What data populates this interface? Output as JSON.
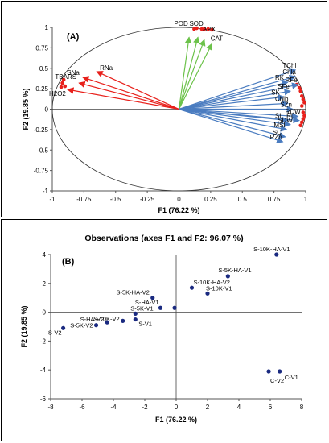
{
  "chart_data": [
    {
      "type": "biplot",
      "panel_label": "(A)",
      "xlabel": "F1 (76.22 %)",
      "ylabel": "F2 (19.85 %)",
      "xlim": [
        -1,
        1
      ],
      "ylim": [
        -1,
        1
      ],
      "x_ticks": [
        "-1",
        "-0.75",
        "-0.5",
        "-0.25",
        "0",
        "0.25",
        "0.5",
        "0.75",
        "1"
      ],
      "y_ticks": [
        "-1",
        "-0.75",
        "-0.5",
        "-0.25",
        "0",
        "0.25",
        "0.5",
        "0.75",
        "1"
      ],
      "color_groups": {
        "red": "#e8201b",
        "green": "#6cc24a",
        "blue": "#4a7cc0"
      },
      "vectors": [
        {
          "label": "RNa",
          "x": -0.65,
          "y": 0.46,
          "group": "red"
        },
        {
          "label": "SNa",
          "x": -0.76,
          "y": 0.39,
          "group": "red"
        },
        {
          "label": "TBARS",
          "x": -0.79,
          "y": 0.32,
          "group": "red"
        },
        {
          "label": "H2O2",
          "x": -0.88,
          "y": 0.24,
          "group": "red"
        },
        {
          "label": "POD",
          "x": 0.08,
          "y": 0.88,
          "group": "green"
        },
        {
          "label": "SOD",
          "x": 0.15,
          "y": 0.88,
          "group": "green"
        },
        {
          "label": "APX",
          "x": 0.2,
          "y": 0.85,
          "group": "green"
        },
        {
          "label": "CAT",
          "x": 0.26,
          "y": 0.8,
          "group": "green"
        },
        {
          "label": "TChl",
          "x": 0.92,
          "y": 0.48,
          "group": "blue"
        },
        {
          "label": "Chla",
          "x": 0.92,
          "y": 0.4,
          "group": "blue"
        },
        {
          "label": "RK",
          "x": 0.86,
          "y": 0.33,
          "group": "blue"
        },
        {
          "label": "RFe",
          "x": 0.94,
          "y": 0.3,
          "group": "blue"
        },
        {
          "label": "SFe",
          "x": 0.88,
          "y": 0.22,
          "group": "blue"
        },
        {
          "label": "SK",
          "x": 0.83,
          "y": 0.15,
          "group": "blue"
        },
        {
          "label": "Chlb",
          "x": 0.86,
          "y": 0.07,
          "group": "blue"
        },
        {
          "label": "SZn",
          "x": 0.9,
          "y": 0.0,
          "group": "blue"
        },
        {
          "label": "RDW",
          "x": 0.94,
          "y": -0.09,
          "group": "blue"
        },
        {
          "label": "RL",
          "x": 0.95,
          "y": -0.14,
          "group": "blue"
        },
        {
          "label": "SL",
          "x": 0.86,
          "y": -0.14,
          "group": "blue"
        },
        {
          "label": "SDW",
          "x": 0.88,
          "y": -0.19,
          "group": "blue"
        },
        {
          "label": "MSI",
          "x": 0.85,
          "y": -0.25,
          "group": "blue"
        },
        {
          "label": "SC",
          "x": 0.84,
          "y": -0.34,
          "group": "blue"
        },
        {
          "label": "RZn",
          "x": 0.82,
          "y": -0.4,
          "group": "blue"
        }
      ],
      "red_dots": [
        {
          "x": -0.93,
          "y": 0.27
        },
        {
          "x": -0.92,
          "y": 0.32
        },
        {
          "x": -0.91,
          "y": 0.36
        },
        {
          "x": -0.9,
          "y": 0.28
        },
        {
          "x": 0.12,
          "y": 0.98
        },
        {
          "x": 0.14,
          "y": 0.99
        },
        {
          "x": 0.18,
          "y": 0.98
        },
        {
          "x": 0.2,
          "y": 0.98
        },
        {
          "x": 0.23,
          "y": 0.98
        },
        {
          "x": 0.26,
          "y": 0.97
        },
        {
          "x": 0.93,
          "y": 0.3
        },
        {
          "x": 0.95,
          "y": 0.26
        },
        {
          "x": 0.96,
          "y": 0.22
        },
        {
          "x": 0.97,
          "y": 0.16
        },
        {
          "x": 0.98,
          "y": 0.12
        },
        {
          "x": 0.99,
          "y": 0.08
        },
        {
          "x": 0.97,
          "y": 0.04
        },
        {
          "x": 0.98,
          "y": -0.04
        },
        {
          "x": 0.99,
          "y": -0.08
        },
        {
          "x": 0.98,
          "y": -0.12
        },
        {
          "x": 0.97,
          "y": -0.16
        },
        {
          "x": 0.96,
          "y": -0.2
        }
      ]
    },
    {
      "type": "scatter",
      "title": "Observations (axes F1 and F2: 96.07 %)",
      "panel_label": "(B)",
      "xlabel": "F1 (76.22 %)",
      "ylabel": "F2 (19.85 %)",
      "xlim": [
        -8,
        8
      ],
      "ylim": [
        -6,
        4
      ],
      "x_ticks": [
        "-8",
        "-6",
        "-4",
        "-2",
        "0",
        "2",
        "4",
        "6",
        "8"
      ],
      "y_ticks": [
        "-6",
        "-4",
        "-2",
        "0",
        "2",
        "4"
      ],
      "point_color": "#1a2a80",
      "points": [
        {
          "label": "S-10K-HA-V1",
          "x": 6.4,
          "y": 4.0
        },
        {
          "label": "S-5K-HA-V1",
          "x": 3.3,
          "y": 2.5
        },
        {
          "label": "S-10K-HA-V2",
          "x": 1.0,
          "y": 1.7
        },
        {
          "label": "S-10K-V1",
          "x": 2.0,
          "y": 1.3
        },
        {
          "label": "S-5K-HA-V2",
          "x": -1.5,
          "y": 1.0
        },
        {
          "label": "S-HA-V1",
          "x": -1.0,
          "y": 0.3
        },
        {
          "label": "S-5K-V1",
          "x": -2.6,
          "y": -0.1
        },
        {
          "label": "S-10K-V2",
          "x": -3.4,
          "y": -0.6
        },
        {
          "label": "S-HA-V2",
          "x": -4.4,
          "y": -0.7
        },
        {
          "label": "S-5K-V2",
          "x": -5.1,
          "y": -0.9
        },
        {
          "label": "S-V2",
          "x": -7.2,
          "y": -1.1
        },
        {
          "label": "S-V1",
          "x": -2.6,
          "y": -0.5
        },
        {
          "label": "C-V1",
          "x": 6.6,
          "y": -4.1
        },
        {
          "label": "C-V2",
          "x": 5.9,
          "y": -4.1
        },
        {
          "label": "",
          "x": -0.1,
          "y": 0.3
        }
      ]
    }
  ]
}
